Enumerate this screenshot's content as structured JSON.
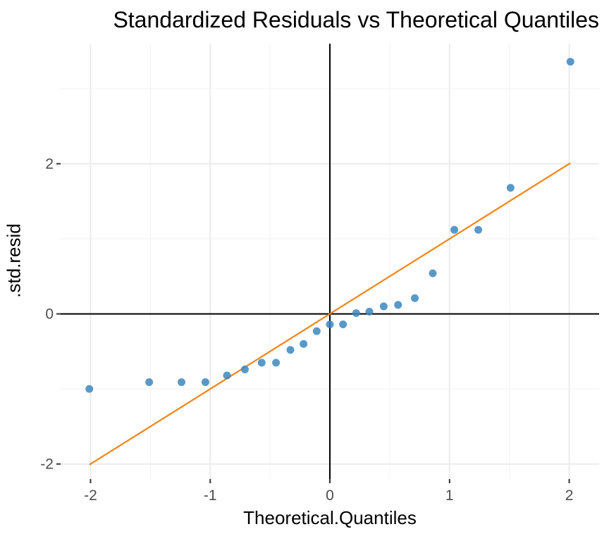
{
  "chart_data": {
    "type": "scatter",
    "title": "Standardized Residuals vs Theoretical Quantiles",
    "xlabel": "Theoretical.Quantiles",
    "ylabel": ".std.resid",
    "xlim": [
      -2.25,
      2.25
    ],
    "ylim": [
      -2.2,
      3.6
    ],
    "x_ticks": [
      -2,
      -1,
      0,
      1,
      2
    ],
    "x_tick_labels": [
      "-2",
      "-1",
      "0",
      "1",
      "2"
    ],
    "y_ticks": [
      -2,
      0,
      2
    ],
    "y_tick_labels": [
      "-2",
      "0",
      "2"
    ],
    "grid": true,
    "reference_lines": [
      {
        "type": "vline",
        "x": 0,
        "color": "#000000"
      },
      {
        "type": "hline",
        "y": 0,
        "color": "#000000"
      }
    ],
    "fit_line": {
      "x": [
        -2.01,
        2.01
      ],
      "y": [
        -2.01,
        2.01
      ],
      "color": "#f28518"
    },
    "series": [
      {
        "color": "#3c87c0",
        "points": [
          {
            "x": -2.01,
            "y": -1.0
          },
          {
            "x": -1.51,
            "y": -0.91
          },
          {
            "x": -1.24,
            "y": -0.91
          },
          {
            "x": -1.04,
            "y": -0.91
          },
          {
            "x": -0.86,
            "y": -0.82
          },
          {
            "x": -0.71,
            "y": -0.74
          },
          {
            "x": -0.57,
            "y": -0.65
          },
          {
            "x": -0.45,
            "y": -0.65
          },
          {
            "x": -0.33,
            "y": -0.48
          },
          {
            "x": -0.22,
            "y": -0.4
          },
          {
            "x": -0.11,
            "y": -0.23
          },
          {
            "x": 0.0,
            "y": -0.14
          },
          {
            "x": 0.11,
            "y": -0.14
          },
          {
            "x": 0.22,
            "y": 0.01
          },
          {
            "x": 0.33,
            "y": 0.03
          },
          {
            "x": 0.45,
            "y": 0.1
          },
          {
            "x": 0.57,
            "y": 0.12
          },
          {
            "x": 0.71,
            "y": 0.21
          },
          {
            "x": 0.86,
            "y": 0.54
          },
          {
            "x": 1.04,
            "y": 1.12
          },
          {
            "x": 1.24,
            "y": 1.12
          },
          {
            "x": 1.51,
            "y": 1.68
          },
          {
            "x": 2.01,
            "y": 3.36
          }
        ]
      }
    ]
  }
}
